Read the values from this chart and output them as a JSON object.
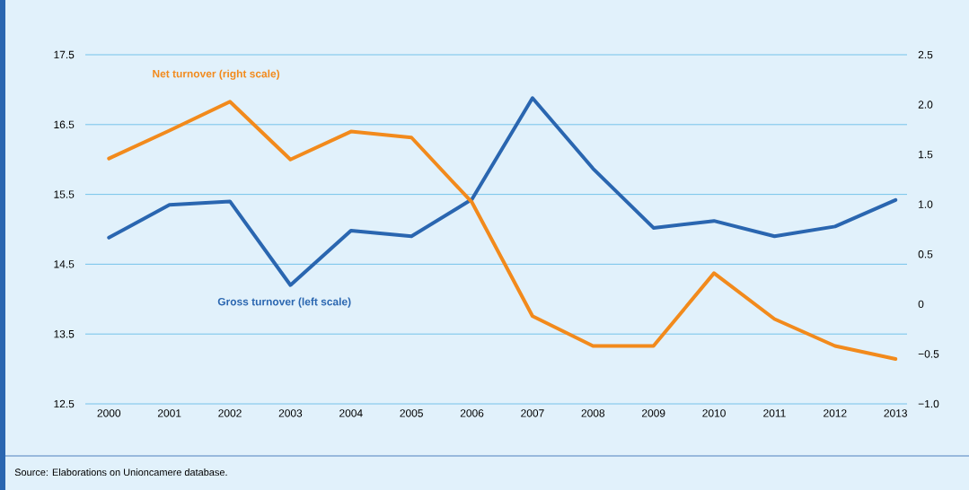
{
  "chart_data": {
    "type": "line",
    "categories": [
      "2000",
      "2001",
      "2002",
      "2003",
      "2004",
      "2005",
      "2006",
      "2007",
      "2008",
      "2009",
      "2010",
      "2011",
      "2012",
      "2013"
    ],
    "series": [
      {
        "name": "Gross turnover (left scale)",
        "color": "#2a66b0",
        "values": [
          14.88,
          15.35,
          15.4,
          14.2,
          14.98,
          14.9,
          15.43,
          16.88,
          15.87,
          15.02,
          15.12,
          14.9,
          15.04,
          15.42
        ]
      },
      {
        "name": "Net turnover (right scale)",
        "color": "#f28a1c",
        "axis": "y2",
        "values": [
          1.46,
          1.74,
          2.03,
          1.45,
          1.73,
          1.67,
          1.02,
          -0.12,
          -0.42,
          -0.42,
          0.31,
          -0.15,
          -0.42,
          -0.55
        ]
      }
    ],
    "ylim": [
      12.5,
      17.5
    ],
    "yticks": [
      12.5,
      13.5,
      14.5,
      15.5,
      16.5,
      17.5
    ],
    "y2lim": [
      -1.0,
      2.5
    ],
    "y2ticks": [
      {
        "value": -1.0,
        "label": "−1.0"
      },
      {
        "value": -0.5,
        "label": "−0.5"
      },
      {
        "value": 0,
        "label": "0"
      },
      {
        "value": 0.5,
        "label": "0.5"
      },
      {
        "value": 1.0,
        "label": "1.0"
      },
      {
        "value": 1.5,
        "label": "1.5"
      },
      {
        "value": 2.0,
        "label": "2.0"
      },
      {
        "value": 2.5,
        "label": "2.5"
      }
    ],
    "grid": "y",
    "line_style": "solid",
    "marker": "none",
    "legend": false,
    "annotations": [
      "Source: Elaborations on Unioncamere database."
    ]
  }
}
